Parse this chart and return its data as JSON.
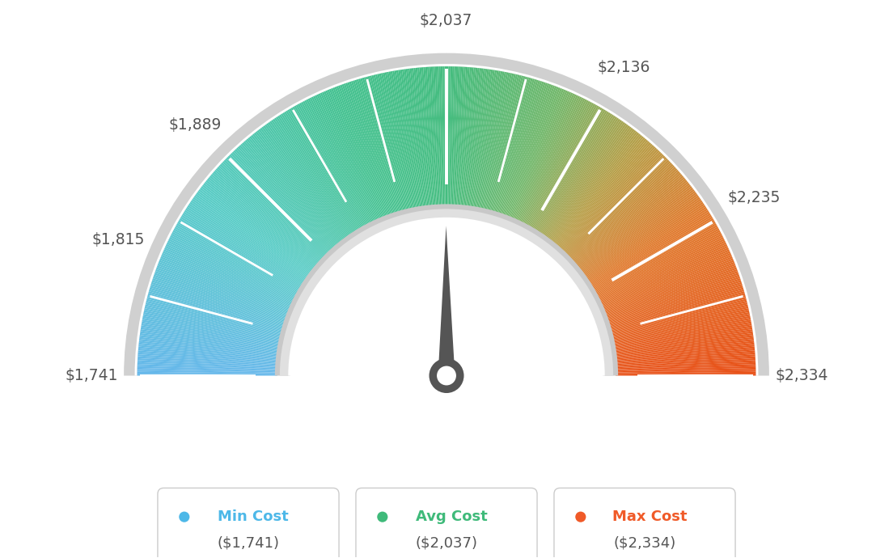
{
  "min_val": 1741,
  "avg_val": 2037,
  "max_val": 2334,
  "tick_values": [
    1741,
    1815,
    1889,
    2037,
    2136,
    2235,
    2334
  ],
  "legend_min_label": "Min Cost",
  "legend_avg_label": "Avg Cost",
  "legend_max_label": "Max Cost",
  "legend_min_value": "($1,741)",
  "legend_avg_value": "($2,037)",
  "legend_max_value": "($2,334)",
  "legend_min_color": "#4db8e8",
  "legend_avg_color": "#3fba7a",
  "legend_max_color": "#f05a28",
  "background_color": "#ffffff",
  "needle_value": 2037,
  "color_stops": [
    [
      0.0,
      [
        0.4,
        0.72,
        0.92
      ]
    ],
    [
      0.2,
      [
        0.35,
        0.8,
        0.78
      ]
    ],
    [
      0.38,
      [
        0.27,
        0.76,
        0.57
      ]
    ],
    [
      0.5,
      [
        0.27,
        0.74,
        0.5
      ]
    ],
    [
      0.62,
      [
        0.45,
        0.72,
        0.42
      ]
    ],
    [
      0.72,
      [
        0.72,
        0.62,
        0.28
      ]
    ],
    [
      0.82,
      [
        0.88,
        0.48,
        0.18
      ]
    ],
    [
      1.0,
      [
        0.91,
        0.32,
        0.1
      ]
    ]
  ]
}
